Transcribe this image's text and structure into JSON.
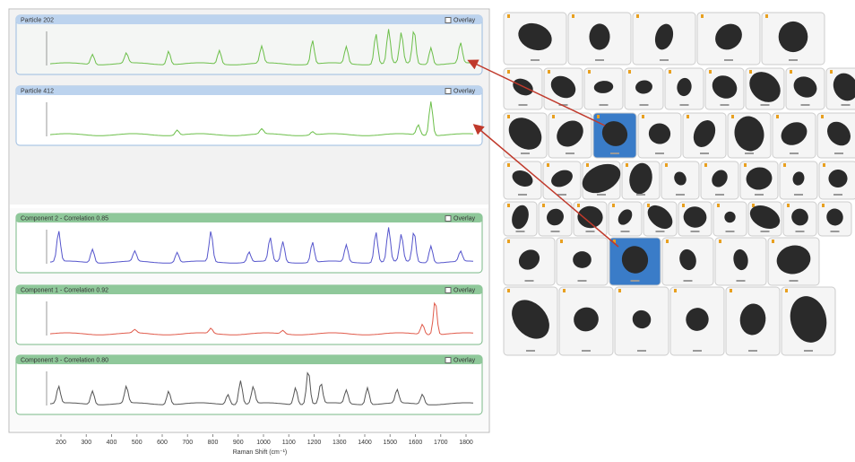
{
  "spectra_panels": [
    {
      "title": "Particle 202",
      "overlay": "Overlay"
    },
    {
      "title": "Particle 412",
      "overlay": "Overlay"
    },
    {
      "title": "Component 2 - Correlation 0.85",
      "overlay": "Overlay"
    },
    {
      "title": "Component 1 - Correlation 0.92",
      "overlay": "Overlay"
    },
    {
      "title": "Component 3 - Correlation 0.80",
      "overlay": "Overlay"
    }
  ],
  "x_axis": {
    "ticks": [
      "200",
      "300",
      "400",
      "500",
      "600",
      "700",
      "800",
      "900",
      "1000",
      "1100",
      "1200",
      "1300",
      "1400",
      "1500",
      "1600",
      "1700",
      "1800"
    ],
    "title": "Raman Shift (cm⁻¹)"
  }
}
